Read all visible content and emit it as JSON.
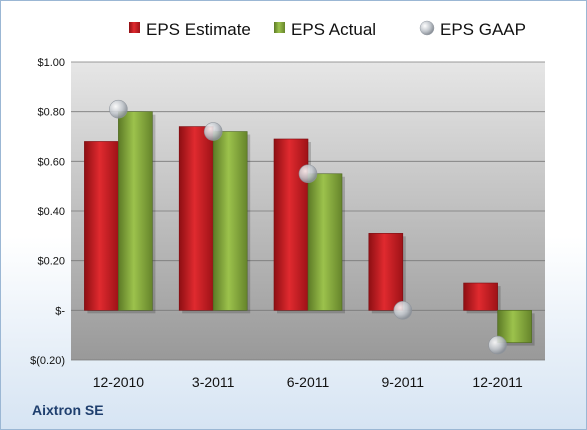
{
  "company": "Aixtron SE",
  "chart_data": {
    "type": "bar",
    "categories": [
      "12-2010",
      "3-2011",
      "6-2011",
      "9-2011",
      "12-2011"
    ],
    "series": [
      {
        "name": "EPS Estimate",
        "values": [
          0.68,
          0.74,
          0.69,
          0.31,
          0.11
        ],
        "color": "#c0161d"
      },
      {
        "name": "EPS Actual",
        "values": [
          0.8,
          0.72,
          0.55,
          null,
          -0.13
        ],
        "color": "#7fa23a"
      }
    ],
    "markers": {
      "name": "EPS GAAP",
      "values": [
        0.81,
        0.72,
        0.55,
        0.0,
        -0.14
      ],
      "color": "#b8bfc8"
    },
    "ylim": [
      -0.2,
      1.0
    ],
    "y_ticks": [
      {
        "value": 1.0,
        "label": "$1.00"
      },
      {
        "value": 0.8,
        "label": "$0.80"
      },
      {
        "value": 0.6,
        "label": "$0.60"
      },
      {
        "value": 0.4,
        "label": "$0.40"
      },
      {
        "value": 0.2,
        "label": "$0.20"
      },
      {
        "value": 0.0,
        "label": "$-"
      },
      {
        "value": -0.2,
        "label": "$(0.20)"
      }
    ],
    "legend_position": "top",
    "grid": true
  }
}
